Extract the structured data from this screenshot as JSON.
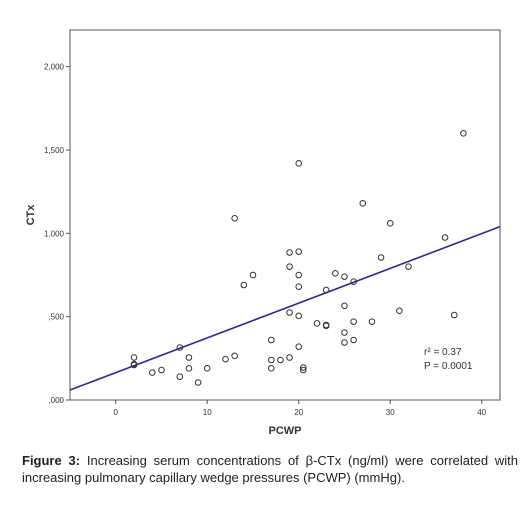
{
  "chart_data": {
    "type": "scatter",
    "xlabel": "PCWP",
    "ylabel": "CTx",
    "xlim": [
      -5,
      42
    ],
    "ylim": [
      0,
      2220
    ],
    "x_ticks": [
      0,
      10,
      20,
      30,
      40
    ],
    "x_tick_labels": [
      "0",
      "10",
      "20",
      "30",
      "40"
    ],
    "y_ticks": [
      0,
      500,
      1000,
      1500,
      2000
    ],
    "y_tick_labels": [
      ",000",
      ",500",
      "1,000",
      "1,500",
      "2,000"
    ],
    "grid": false,
    "fit_line": {
      "x": [
        -5,
        42
      ],
      "y": [
        60,
        1040
      ]
    },
    "annotations": [
      "r² = 0.37",
      "P = 0.0001"
    ],
    "points": [
      {
        "x": 2,
        "y": 255
      },
      {
        "x": 2,
        "y": 215
      },
      {
        "x": 2,
        "y": 210
      },
      {
        "x": 4,
        "y": 165
      },
      {
        "x": 5,
        "y": 180
      },
      {
        "x": 7,
        "y": 315
      },
      {
        "x": 7,
        "y": 140
      },
      {
        "x": 8,
        "y": 255
      },
      {
        "x": 8,
        "y": 190
      },
      {
        "x": 9,
        "y": 105
      },
      {
        "x": 10,
        "y": 190
      },
      {
        "x": 12,
        "y": 245
      },
      {
        "x": 13,
        "y": 265
      },
      {
        "x": 13,
        "y": 1090
      },
      {
        "x": 14,
        "y": 690
      },
      {
        "x": 15,
        "y": 750
      },
      {
        "x": 17,
        "y": 360
      },
      {
        "x": 17,
        "y": 240
      },
      {
        "x": 17,
        "y": 190
      },
      {
        "x": 18,
        "y": 240
      },
      {
        "x": 19,
        "y": 255
      },
      {
        "x": 19,
        "y": 525
      },
      {
        "x": 19,
        "y": 800
      },
      {
        "x": 19,
        "y": 885
      },
      {
        "x": 20,
        "y": 890
      },
      {
        "x": 20,
        "y": 750
      },
      {
        "x": 20,
        "y": 680
      },
      {
        "x": 20,
        "y": 505
      },
      {
        "x": 20,
        "y": 320
      },
      {
        "x": 20,
        "y": 1420
      },
      {
        "x": 20.5,
        "y": 195
      },
      {
        "x": 20.5,
        "y": 180
      },
      {
        "x": 22,
        "y": 460
      },
      {
        "x": 23,
        "y": 660
      },
      {
        "x": 23,
        "y": 450
      },
      {
        "x": 23,
        "y": 445
      },
      {
        "x": 24,
        "y": 760
      },
      {
        "x": 25,
        "y": 740
      },
      {
        "x": 25,
        "y": 565
      },
      {
        "x": 25,
        "y": 405
      },
      {
        "x": 25,
        "y": 345
      },
      {
        "x": 26,
        "y": 710
      },
      {
        "x": 26,
        "y": 470
      },
      {
        "x": 26,
        "y": 360
      },
      {
        "x": 27,
        "y": 1180
      },
      {
        "x": 28,
        "y": 470
      },
      {
        "x": 29,
        "y": 855
      },
      {
        "x": 30,
        "y": 1060
      },
      {
        "x": 31,
        "y": 535
      },
      {
        "x": 32,
        "y": 800
      },
      {
        "x": 36,
        "y": 975
      },
      {
        "x": 37,
        "y": 510
      },
      {
        "x": 38,
        "y": 1600
      }
    ]
  },
  "caption": {
    "label": "Figure 3:",
    "text": " Increasing serum concentrations of β-CTx (ng/ml) were correlated with increasing pulmonary capillary wedge pressures (PCWP) (mmHg)."
  }
}
